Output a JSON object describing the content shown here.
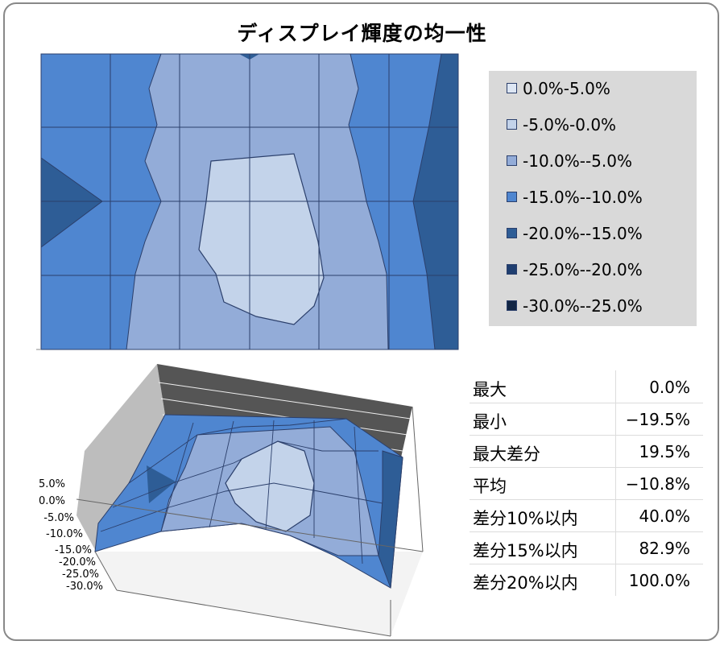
{
  "title": "ディスプレイ輝度の均一性",
  "colors": {
    "band_0_5": "#dde6f3",
    "band_m5_0": "#c3d3ea",
    "band_m10_m5": "#93acd8",
    "band_m15_m10": "#4f86d0",
    "band_m20_m15": "#2e5d96",
    "band_m25_m20": "#1f3e70",
    "band_m30_m25": "#112544"
  },
  "chart_data": [
    {
      "type": "contour",
      "legend": {
        "position": "right",
        "entries": [
          "0.0%-5.0%",
          "-5.0%-0.0%",
          "-10.0%--5.0%",
          "-15.0%--10.0%",
          "-20.0%--15.0%",
          "-25.0%--20.0%",
          "-30.0%--25.0%"
        ]
      },
      "grid": true
    },
    {
      "type": "surface3d",
      "ytick_labels": [
        "5.0%",
        "0.0%",
        "-5.0%",
        "-10.0%",
        "-15.0%",
        "-20.0%",
        "-25.0%",
        "-30.0%"
      ],
      "zlim": [
        -30,
        5
      ]
    }
  ],
  "stats": [
    {
      "label": "最大",
      "value": "0.0%"
    },
    {
      "label": "最小",
      "value": "−19.5%"
    },
    {
      "label": "最大差分",
      "value": "19.5%"
    },
    {
      "label": "平均",
      "value": "−10.8%"
    },
    {
      "label": "差分10%以内",
      "value": "40.0%"
    },
    {
      "label": "差分15%以内",
      "value": "82.9%"
    },
    {
      "label": "差分20%以内",
      "value": "100.0%"
    }
  ]
}
